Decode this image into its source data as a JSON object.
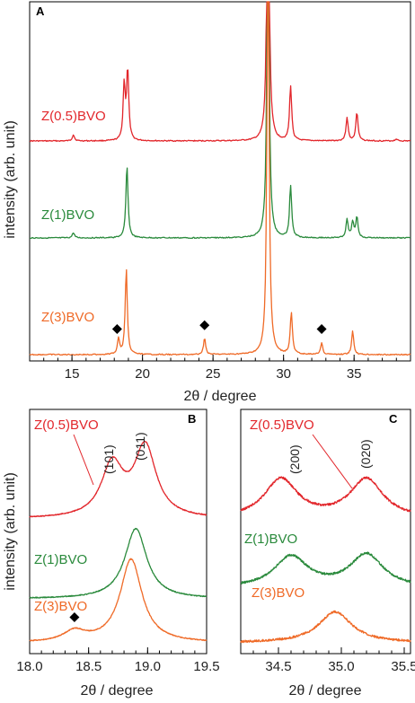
{
  "colors": {
    "Z(0.5)BVO": "#e2262b",
    "Z(1)BVO": "#2a8a3c",
    "Z(3)BVO": "#ef6a27",
    "marker": "#000000"
  },
  "ylabel": "intensity (arb. unit)",
  "xlabel": "2θ / degree",
  "chart_data": [
    {
      "panel": "A",
      "type": "line",
      "xlabel": "2θ / degree",
      "ylabel": "intensity (arb. unit)",
      "xlim": [
        12,
        39
      ],
      "xticks": [
        15,
        20,
        25,
        30,
        35
      ],
      "series": [
        {
          "name": "Z(0.5)BVO",
          "peaks": [
            [
              15.1,
              0.12
            ],
            [
              18.7,
              1.05
            ],
            [
              18.95,
              1.35
            ],
            [
              28.9,
              7.0
            ],
            [
              30.5,
              1.05
            ],
            [
              34.5,
              0.45
            ],
            [
              35.2,
              0.55
            ],
            [
              38.0,
              0.04
            ]
          ]
        },
        {
          "name": "Z(1)BVO",
          "peaks": [
            [
              15.1,
              0.1
            ],
            [
              18.9,
              1.4
            ],
            [
              28.9,
              7.0
            ],
            [
              30.5,
              1.0
            ],
            [
              34.5,
              0.35
            ],
            [
              34.9,
              0.3
            ],
            [
              35.2,
              0.4
            ]
          ]
        },
        {
          "name": "Z(3)BVO",
          "peaks": [
            [
              18.3,
              0.3
            ],
            [
              18.85,
              1.65
            ],
            [
              24.4,
              0.32
            ],
            [
              28.9,
              8.0
            ],
            [
              30.55,
              0.8
            ],
            [
              32.7,
              0.22
            ],
            [
              34.9,
              0.45
            ]
          ]
        }
      ],
      "markers": [
        18.2,
        24.4,
        32.7
      ]
    },
    {
      "panel": "B",
      "type": "line",
      "xlabel": "2θ / degree",
      "ylabel": "intensity (arb. unit)",
      "xlim": [
        18.0,
        19.5
      ],
      "xticks": [
        "18.0",
        "18.5",
        "19.0",
        "19.5"
      ],
      "annotations": [
        "(101)",
        "(011)"
      ],
      "series": [
        {
          "name": "Z(0.5)BVO",
          "peaks": [
            [
              18.7,
              1.0
            ],
            [
              18.98,
              1.35
            ]
          ]
        },
        {
          "name": "Z(1)BVO",
          "peaks": [
            [
              18.9,
              1.35
            ]
          ]
        },
        {
          "name": "Z(3)BVO",
          "peaks": [
            [
              18.38,
              0.2
            ],
            [
              18.86,
              1.6
            ]
          ]
        }
      ],
      "markers": [
        18.38
      ]
    },
    {
      "panel": "C",
      "type": "line",
      "xlabel": "2θ / degree",
      "ylabel": "",
      "xlim": [
        34.2,
        35.55
      ],
      "xticks": [
        "34.5",
        "35.0",
        "35.5"
      ],
      "annotations": [
        "(200)",
        "(020)"
      ],
      "series": [
        {
          "name": "Z(0.5)BVO",
          "peaks": [
            [
              34.52,
              0.95
            ],
            [
              35.2,
              0.95
            ]
          ]
        },
        {
          "name": "Z(1)BVO",
          "peaks": [
            [
              34.6,
              0.75
            ],
            [
              35.2,
              0.8
            ]
          ]
        },
        {
          "name": "Z(3)BVO",
          "peaks": [
            [
              34.95,
              0.75
            ]
          ]
        }
      ]
    }
  ]
}
